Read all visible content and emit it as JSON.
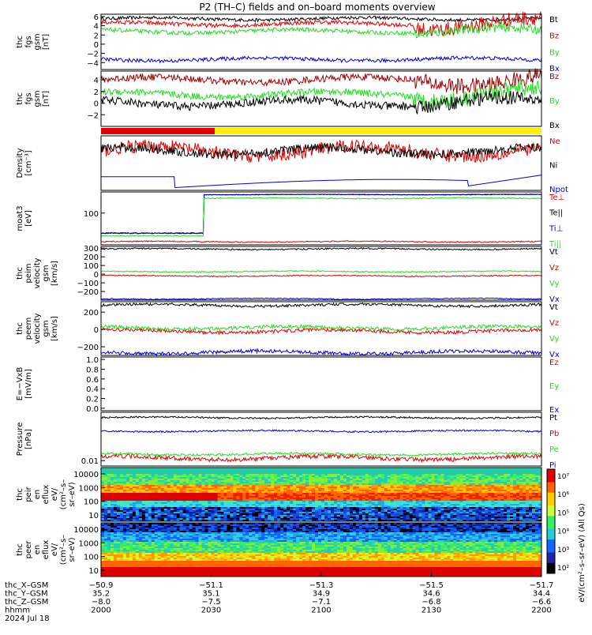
{
  "title": "P2 (TH–C) fields and on–board moments overview",
  "colors": {
    "black": "#000000",
    "red": "#e00000",
    "darkred": "#a00000",
    "green": "#22dd22",
    "blue": "#0000dd",
    "yellow": "#ffee00",
    "olive": "#8a7a00"
  },
  "chart_data": {
    "type": "line",
    "x_axis": {
      "row_labels": [
        "thc_X–GSM",
        "thc_Y–GSM",
        "thc_Z–GSM",
        "hhmm",
        "2024 Jul 18"
      ],
      "ticks": [
        {
          "x": "2000",
          "values": [
            "−50.9",
            "35.2",
            "−8.0"
          ]
        },
        {
          "x": "2030",
          "values": [
            "−51.1",
            "35.1",
            "−7.5"
          ]
        },
        {
          "x": "2100",
          "values": [
            "−51.3",
            "34.9",
            "−7.1"
          ]
        },
        {
          "x": "2130",
          "values": [
            "−51.5",
            "34.6",
            "−6.8"
          ]
        },
        {
          "x": "2200",
          "values": [
            "−51.7",
            "34.4",
            "−6.6"
          ]
        }
      ],
      "range_minutes": [
        0,
        120
      ]
    },
    "panels": [
      {
        "id": "fgs_dsl",
        "ylabel": [
          "thc",
          "fgs",
          "gsm",
          "[nT]"
        ],
        "yrange": [
          -5.5,
          6.5
        ],
        "ticks": [
          {
            "v": 6,
            "t": "6"
          },
          {
            "v": 4,
            "t": "4"
          },
          {
            "v": 2,
            "t": "2"
          },
          {
            "v": 0,
            "t": "0"
          },
          {
            "v": -2,
            "t": "−2"
          },
          {
            "v": -4,
            "t": "−4"
          }
        ],
        "series": [
          {
            "name": "Bt",
            "color": "#000000",
            "base": 5.5,
            "noise": 0.35
          },
          {
            "name": "Bz",
            "color": "#e00000",
            "base": 4.4,
            "noise": 0.45,
            "late_noise": 1.6
          },
          {
            "name": "By",
            "color": "#22dd22",
            "base": 2.8,
            "noise": 0.45,
            "late_noise": 1.0
          },
          {
            "name": "Bx",
            "color": "#0000dd",
            "base": -3.3,
            "noise": 0.4
          }
        ]
      },
      {
        "id": "fgs_gsm",
        "ylabel": [
          "thc",
          "fgs",
          "gsm",
          "[nT]"
        ],
        "yrange": [
          -4,
          5.5
        ],
        "ticks": [
          {
            "v": 4,
            "t": "4"
          },
          {
            "v": 2,
            "t": "2"
          },
          {
            "v": 0,
            "t": "0"
          },
          {
            "v": -2,
            "t": "−2"
          }
        ],
        "series": [
          {
            "name": "Bz",
            "color": "#a00000",
            "base": 4.0,
            "noise": 0.6,
            "late_noise": 1.4
          },
          {
            "name": "By",
            "color": "#22dd22",
            "base": 1.5,
            "noise": 0.6,
            "late_noise": 1.4
          },
          {
            "name": "Bx",
            "color": "#000000",
            "base": 0.0,
            "noise": 0.7,
            "late_noise": 1.2
          }
        ],
        "legend": [
          "Bz",
          "By",
          "Bx"
        ]
      },
      {
        "id": "mode_bar",
        "segments": [
          {
            "from": 0,
            "to": 31,
            "color": "#e00000"
          },
          {
            "from": 31,
            "to": 120,
            "color": "#ffee00"
          }
        ]
      },
      {
        "id": "density",
        "ylabel": [
          "Density",
          "[cm⁻³]"
        ],
        "yrange": [
          0,
          1
        ],
        "ticks": [],
        "series": [
          {
            "name": "Ne",
            "color": "#e00000",
            "base": 0.72,
            "noise": 0.12
          },
          {
            "name": "Ni",
            "color": "#000000",
            "base": 0.72,
            "noise": 0.08
          },
          {
            "name": "Npot",
            "color": "#0000dd",
            "base": 0.15,
            "noise": 0.04
          }
        ]
      },
      {
        "id": "temperature",
        "ylabel": [
          "moat3",
          "[eV]"
        ],
        "yrange": [
          0,
          1
        ],
        "ticks": [
          {
            "v": 0.6,
            "t": "100"
          }
        ],
        "series": [
          {
            "name": "Te⊥",
            "color": "#e00000",
            "base": 0.06,
            "noise": 0.01
          },
          {
            "name": "Te||",
            "color": "#000000",
            "base": 0.95,
            "noise": 0.005
          },
          {
            "name": "Ti⊥",
            "color": "#0000dd",
            "base": 0.95,
            "noise": 0.005
          },
          {
            "name": "Ti||",
            "color": "#22dd22",
            "base": 0.88,
            "noise": 0.01
          }
        ]
      },
      {
        "id": "peim_vel",
        "ylabel": [
          "thc",
          "peim",
          "velocity",
          "gsm",
          "[km/s]"
        ],
        "yrange": [
          -300,
          320
        ],
        "ticks": [
          {
            "v": 300,
            "t": "300"
          },
          {
            "v": 200,
            "t": "200"
          },
          {
            "v": 100,
            "t": "100"
          },
          {
            "v": 0,
            "t": "0"
          },
          {
            "v": -100,
            "t": "−100"
          },
          {
            "v": -200,
            "t": "−200"
          }
        ],
        "series": [
          {
            "name": "Vt",
            "color": "#000000",
            "base": 290,
            "noise": 8
          },
          {
            "name": "Vz",
            "color": "#e00000",
            "base": -20,
            "noise": 6
          },
          {
            "name": "Vy",
            "color": "#22dd22",
            "base": 30,
            "noise": 6
          },
          {
            "name": "Vx",
            "color": "#0000dd",
            "base": -285,
            "noise": 6
          }
        ]
      },
      {
        "id": "peem_vel",
        "ylabel": [
          "thc",
          "peem",
          "velocity",
          "gsm",
          "[km/s]"
        ],
        "yrange": [
          -300,
          320
        ],
        "ticks": [
          {
            "v": 200,
            "t": "200"
          },
          {
            "v": 0,
            "t": "0"
          },
          {
            "v": -200,
            "t": "−200"
          }
        ],
        "series": [
          {
            "name": "Vt",
            "color": "#000000",
            "base": 280,
            "noise": 15
          },
          {
            "name": "Vz",
            "color": "#e00000",
            "base": -20,
            "noise": 20
          },
          {
            "name": "Vy",
            "color": "#22dd22",
            "base": 20,
            "noise": 20
          },
          {
            "name": "Vx",
            "color": "#0000dd",
            "base": -265,
            "noise": 20
          }
        ]
      },
      {
        "id": "efield",
        "ylabel": [
          "E=−VxB",
          "[mV/m]"
        ],
        "yrange": [
          -0.05,
          1.05
        ],
        "ticks": [
          {
            "v": 1.0,
            "t": "1.0"
          },
          {
            "v": 0.8,
            "t": "0.8"
          },
          {
            "v": 0.6,
            "t": "0.6"
          },
          {
            "v": 0.4,
            "t": "0.4"
          },
          {
            "v": 0.2,
            "t": "0.2"
          },
          {
            "v": 0.0,
            "t": "0.0"
          }
        ],
        "series": [
          {
            "name": "Ez",
            "color": "#e00000"
          },
          {
            "name": "Ey",
            "color": "#22dd22"
          },
          {
            "name": "Ex",
            "color": "#0000dd"
          }
        ]
      },
      {
        "id": "pressure",
        "ylabel": [
          "Pressure",
          "[nPa]"
        ],
        "yrange": [
          0,
          1
        ],
        "ticks": [
          {
            "v": 0.1,
            "t": "0.01"
          }
        ],
        "series": [
          {
            "name": "Pt",
            "color": "#000000",
            "base": 0.9,
            "noise": 0.015
          },
          {
            "name": "Pb",
            "color": "#e00000",
            "base": 0.15,
            "noise": 0.04
          },
          {
            "name": "Pe",
            "color": "#22dd22",
            "base": 0.22,
            "noise": 0.02
          },
          {
            "name": "Pi",
            "color": "#0000dd",
            "base": 0.65,
            "noise": 0.015
          }
        ]
      },
      {
        "id": "peir_spec",
        "ylabel": [
          "thc",
          "peir",
          "en",
          "eflux",
          "eV/",
          "(cm²–s–",
          "sr–eV)"
        ],
        "ticks": [
          "10000",
          "1000",
          "100",
          "10"
        ]
      },
      {
        "id": "peer_spec",
        "ylabel": [
          "thc",
          "peer",
          "en",
          "eflux",
          "eV/",
          "(cm²–s–",
          "sr–eV)"
        ],
        "ticks": [
          "10000",
          "1000",
          "100",
          "10"
        ]
      }
    ],
    "colorbar": {
      "labels": [
        "10⁷",
        "10⁶",
        "10⁵",
        "10⁴",
        "10³",
        "10²"
      ],
      "title": "eV/(cm²–s–sr–eV) (All Qs)",
      "colors": [
        "#ffffff",
        "#e00000",
        "#ff6600",
        "#ffcc00",
        "#ccff33",
        "#33ee66",
        "#22ccdd",
        "#1166ff",
        "#2222aa",
        "#000000"
      ]
    }
  }
}
